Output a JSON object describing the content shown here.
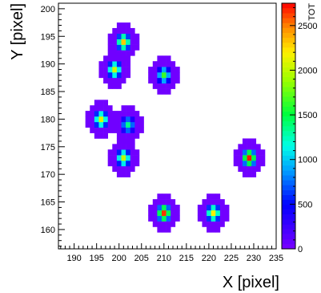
{
  "chart_data": {
    "type": "heatmap",
    "title": "",
    "xlabel": "X [pixel]",
    "ylabel": "Y [pixel]",
    "colorbar_label": "TOT",
    "xlim": [
      186.5,
      235
    ],
    "ylim": [
      156.5,
      201
    ],
    "zlim": [
      0,
      2750
    ],
    "x_ticks": [
      190,
      195,
      200,
      205,
      210,
      215,
      220,
      225,
      230,
      235
    ],
    "y_ticks": [
      160,
      165,
      170,
      175,
      180,
      185,
      190,
      195,
      200
    ],
    "z_ticks": [
      0,
      500,
      1000,
      1500,
      2000,
      2500
    ],
    "palette": "rainbow (violet-blue-cyan-green-yellow-red)",
    "grid": false,
    "clusters": [
      {
        "center": [
          201,
          194
        ],
        "peak": 2300
      },
      {
        "center": [
          199,
          189
        ],
        "peak": 2050
      },
      {
        "center": [
          210,
          188
        ],
        "peak": 1650
      },
      {
        "center": [
          196,
          180
        ],
        "peak": 2100
      },
      {
        "center": [
          202,
          179
        ],
        "peak": 1350
      },
      {
        "center": [
          201,
          173
        ],
        "peak": 2000
      },
      {
        "center": [
          229,
          173
        ],
        "peak": 2700
      },
      {
        "center": [
          210,
          163
        ],
        "peak": 2650
      },
      {
        "center": [
          221,
          163
        ],
        "peak": 2200
      }
    ]
  }
}
